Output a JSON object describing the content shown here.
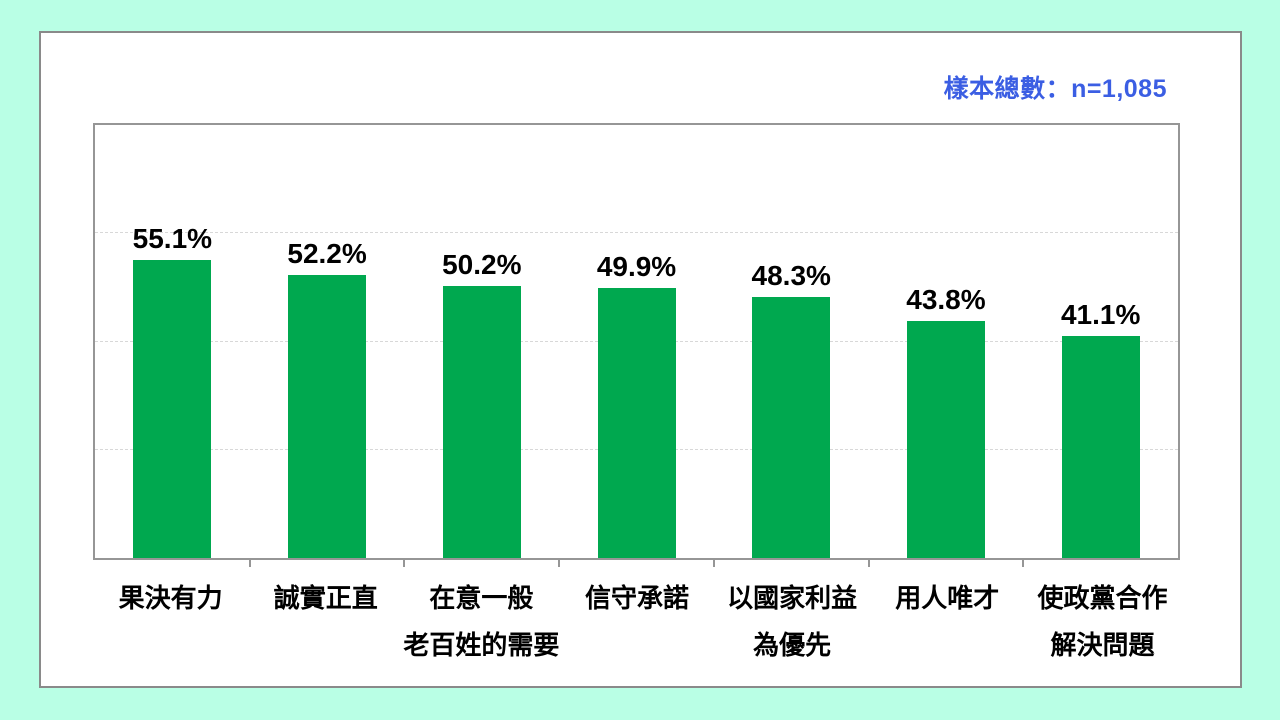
{
  "page": {
    "background_color": "#b9ffe5",
    "card_background": "#ffffff",
    "card_border_color": "#8a8a8a"
  },
  "header": {
    "sample_note": "樣本總數：n=1,085",
    "sample_note_color": "#3b5ee3",
    "sample_n": "1,085"
  },
  "chart_data": {
    "type": "bar",
    "title": "",
    "xlabel": "",
    "ylabel": "",
    "categories": [
      "果決有力",
      "誠實正直",
      "在意一般老百姓的需要",
      "信守承諾",
      "以國家利益為優先",
      "用人唯才",
      "使政黨合作解決問題"
    ],
    "categories_lines": [
      [
        "果決有力"
      ],
      [
        "誠實正直"
      ],
      [
        "在意一般",
        "老百姓的需要"
      ],
      [
        "信守承諾"
      ],
      [
        "以國家利益",
        "為優先"
      ],
      [
        "用人唯才"
      ],
      [
        "使政黨合作",
        "解決問題"
      ]
    ],
    "values": [
      55.1,
      52.2,
      50.2,
      49.9,
      48.3,
      43.8,
      41.1
    ],
    "value_labels": [
      "55.1%",
      "52.2%",
      "50.2%",
      "49.9%",
      "48.3%",
      "43.8%",
      "41.1%"
    ],
    "ylim": [
      0,
      80
    ],
    "gridlines": [
      20,
      40,
      60
    ],
    "grid_style": "dashed",
    "grid_color": "#d8d8d8",
    "legend_position": "none",
    "bar_color": "#00a84f",
    "axis_border_color": "#969696"
  }
}
